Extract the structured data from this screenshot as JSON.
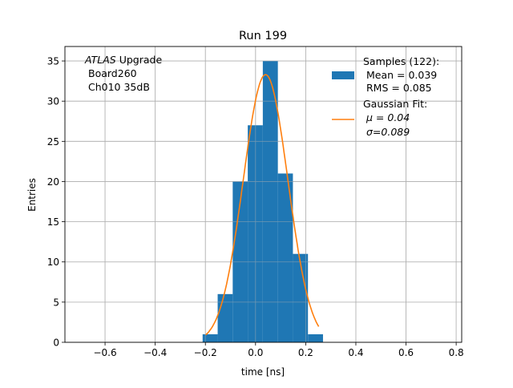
{
  "chart_data": {
    "type": "bar",
    "title": "Run 199",
    "xlabel": "time [ns]",
    "ylabel": "Entries",
    "xlim": [
      -0.76,
      0.822
    ],
    "ylim": [
      0,
      36.8
    ],
    "grid": true,
    "xticks": [
      -0.6,
      -0.4,
      -0.2,
      0.0,
      0.2,
      0.4,
      0.6,
      0.8
    ],
    "xtick_labels": [
      "−0.6",
      "−0.4",
      "−0.2",
      "0.0",
      "0.2",
      "0.4",
      "0.6",
      "0.8"
    ],
    "yticks": [
      0,
      5,
      10,
      15,
      20,
      25,
      30,
      35
    ],
    "ytick_labels": [
      "0",
      "5",
      "10",
      "15",
      "20",
      "25",
      "30",
      "35"
    ],
    "bins": {
      "start": -0.211,
      "width": 0.06,
      "counts": [
        1,
        6,
        20,
        27,
        35,
        21,
        11,
        1
      ]
    },
    "fit": {
      "type": "gaussian",
      "mu": 0.04,
      "sigma": 0.089,
      "amplitude": 33.3,
      "xrange": [
        -0.198,
        0.252
      ]
    },
    "colors": {
      "hist": "#1f77b4",
      "fit": "#ff7f0e",
      "grid": "#b0b0b0"
    },
    "annotation": {
      "italic": "ATLAS",
      "rest": " Upgrade",
      "line2": "Board260",
      "line3": "Ch010 35dB"
    },
    "legend": {
      "placement": "top-right",
      "entries": [
        {
          "lines": [
            "Samples (122):",
            "Mean = 0.039",
            "RMS = 0.085"
          ],
          "kind": "patch"
        },
        {
          "lines": [
            "Gaussian Fit:",
            "μ = 0.04",
            "σ=0.089"
          ],
          "kind": "line"
        }
      ]
    }
  }
}
